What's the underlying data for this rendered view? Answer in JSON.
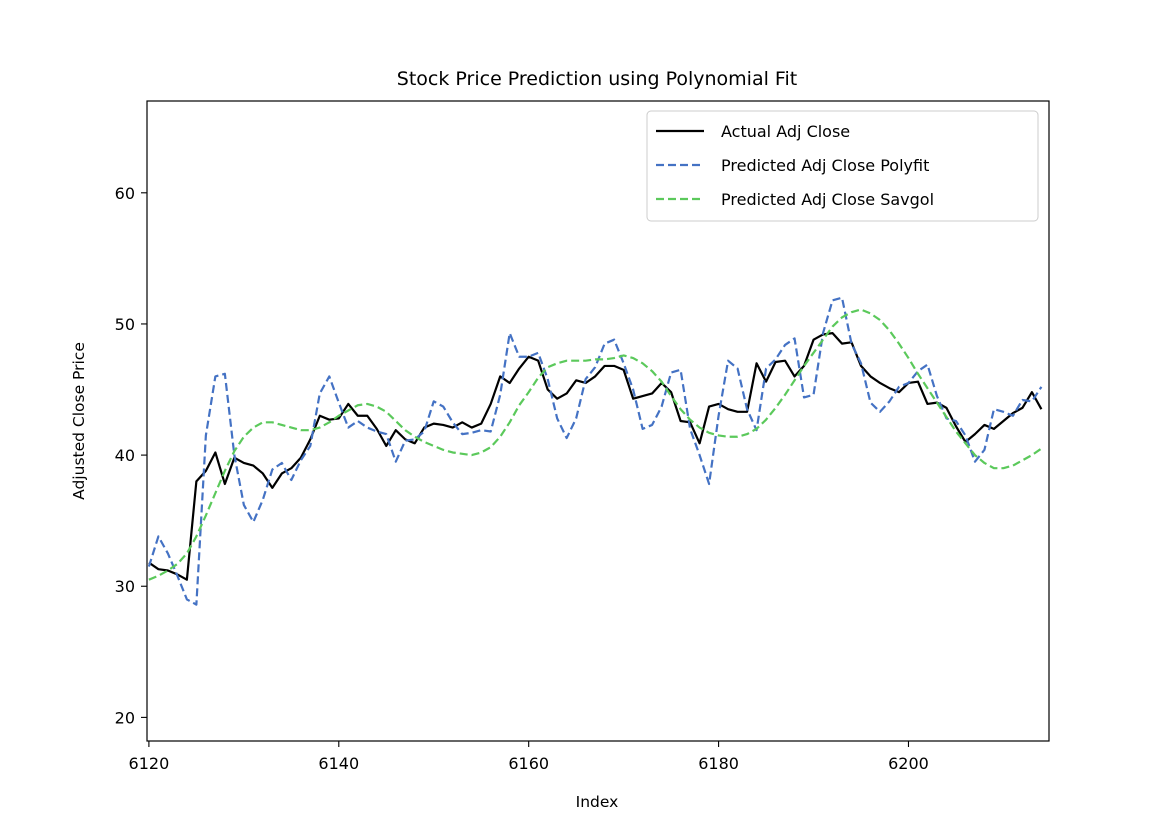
{
  "chart_data": {
    "type": "line",
    "title": "Stock Price Prediction using Polynomial Fit",
    "xlabel": "Index",
    "ylabel": "Adjusted Close Price",
    "xlim": [
      6119.8,
      6214.8
    ],
    "ylim": [
      18.2,
      67
    ],
    "x_ticks": [
      6120,
      6140,
      6160,
      6180,
      6200
    ],
    "y_ticks": [
      20,
      30,
      40,
      50,
      60
    ],
    "grid": false,
    "legend_position": "top-right",
    "x": [
      6120,
      6121,
      6122,
      6123,
      6124,
      6125,
      6126,
      6127,
      6128,
      6129,
      6130,
      6131,
      6132,
      6133,
      6134,
      6135,
      6136,
      6137,
      6138,
      6139,
      6140,
      6141,
      6142,
      6143,
      6144,
      6145,
      6146,
      6147,
      6148,
      6149,
      6150,
      6151,
      6152,
      6153,
      6154,
      6155,
      6156,
      6157,
      6158,
      6159,
      6160,
      6161,
      6162,
      6163,
      6164,
      6165,
      6166,
      6167,
      6168,
      6169,
      6170,
      6171,
      6172,
      6173,
      6174,
      6175,
      6176,
      6177,
      6178,
      6179,
      6180,
      6181,
      6182,
      6183,
      6184,
      6185,
      6186,
      6187,
      6188,
      6189,
      6190,
      6191,
      6192,
      6193,
      6194,
      6195,
      6196,
      6197,
      6198,
      6199,
      6200,
      6201,
      6202,
      6203,
      6204,
      6205,
      6206,
      6207,
      6208,
      6209,
      6210,
      6211,
      6212,
      6213,
      6214
    ],
    "series": [
      {
        "name": "Actual Adj Close",
        "color": "#000000",
        "style": "solid",
        "values": [
          31.8,
          31.3,
          31.2,
          30.9,
          30.5,
          38.0,
          38.8,
          40.2,
          37.8,
          39.8,
          39.4,
          39.2,
          38.6,
          37.5,
          38.6,
          39.0,
          39.8,
          41.2,
          43.0,
          42.7,
          42.8,
          43.9,
          43.0,
          43.0,
          42.0,
          40.7,
          41.9,
          41.2,
          40.9,
          42.1,
          42.4,
          42.3,
          42.1,
          42.5,
          42.1,
          42.4,
          43.9,
          46.0,
          45.5,
          46.6,
          47.5,
          47.2,
          45.0,
          44.3,
          44.7,
          45.7,
          45.5,
          46.0,
          46.8,
          46.8,
          46.5,
          44.3,
          44.5,
          44.7,
          45.5,
          44.8,
          42.6,
          42.5,
          40.9,
          43.7,
          43.9,
          43.5,
          43.3,
          43.3,
          47.0,
          45.6,
          47.1,
          47.2,
          46.0,
          46.8,
          48.8,
          49.2,
          49.3,
          48.5,
          48.6,
          46.8,
          46.0,
          45.5,
          45.1,
          44.8,
          45.5,
          45.6,
          43.9,
          44.0,
          43.6,
          42.2,
          41.0,
          41.6,
          42.3,
          42.0,
          42.6,
          43.2,
          43.6,
          44.8,
          43.5
        ]
      },
      {
        "name": "Predicted Adj Close Polyfit",
        "color": "#4472c4",
        "style": "dashed",
        "values": [
          31.5,
          33.8,
          32.5,
          30.8,
          29.0,
          28.6,
          41.5,
          46.0,
          46.2,
          40.0,
          36.2,
          34.9,
          36.6,
          38.9,
          39.4,
          38.1,
          39.6,
          40.7,
          44.7,
          46.0,
          44.0,
          42.1,
          42.6,
          42.1,
          41.8,
          41.6,
          39.5,
          41.1,
          41.2,
          41.8,
          44.1,
          43.7,
          42.5,
          41.6,
          41.7,
          41.9,
          41.8,
          44.6,
          49.3,
          47.5,
          47.5,
          47.8,
          45.8,
          42.8,
          41.3,
          42.8,
          45.8,
          46.7,
          48.5,
          48.8,
          47.0,
          45.0,
          42.0,
          42.3,
          43.7,
          46.3,
          46.5,
          42.0,
          40.0,
          37.8,
          43.0,
          47.2,
          46.6,
          43.5,
          41.9,
          46.6,
          47.3,
          48.4,
          48.9,
          44.4,
          44.6,
          49.3,
          51.8,
          52.0,
          48.5,
          47.0,
          44.0,
          43.3,
          44.1,
          45.2,
          45.5,
          46.4,
          46.9,
          44.5,
          42.8,
          42.6,
          41.5,
          39.5,
          40.4,
          43.5,
          43.3,
          43.0,
          44.2,
          44.1,
          45.2
        ]
      },
      {
        "name": "Predicted Adj Close Savgol",
        "color": "#5bc95b",
        "style": "dashed",
        "values": [
          30.5,
          30.8,
          31.2,
          31.7,
          32.5,
          33.8,
          35.4,
          37.1,
          38.8,
          40.3,
          41.4,
          42.1,
          42.5,
          42.5,
          42.3,
          42.1,
          41.9,
          41.9,
          42.1,
          42.5,
          43.0,
          43.4,
          43.8,
          43.9,
          43.7,
          43.3,
          42.6,
          41.9,
          41.4,
          41.0,
          40.7,
          40.4,
          40.2,
          40.1,
          40.0,
          40.2,
          40.6,
          41.4,
          42.5,
          43.8,
          44.8,
          45.9,
          46.7,
          47.0,
          47.2,
          47.2,
          47.2,
          47.3,
          47.3,
          47.4,
          47.6,
          47.4,
          47.0,
          46.4,
          45.6,
          44.5,
          43.5,
          42.7,
          42.1,
          41.7,
          41.5,
          41.4,
          41.4,
          41.6,
          42.0,
          42.7,
          43.6,
          44.6,
          45.7,
          46.8,
          47.8,
          48.8,
          49.8,
          50.5,
          50.9,
          51.1,
          50.8,
          50.3,
          49.5,
          48.5,
          47.4,
          46.2,
          45.1,
          44.0,
          42.9,
          41.8,
          40.9,
          40.0,
          39.4,
          39.0,
          39.0,
          39.2,
          39.6,
          40.0,
          40.5
        ]
      }
    ]
  }
}
